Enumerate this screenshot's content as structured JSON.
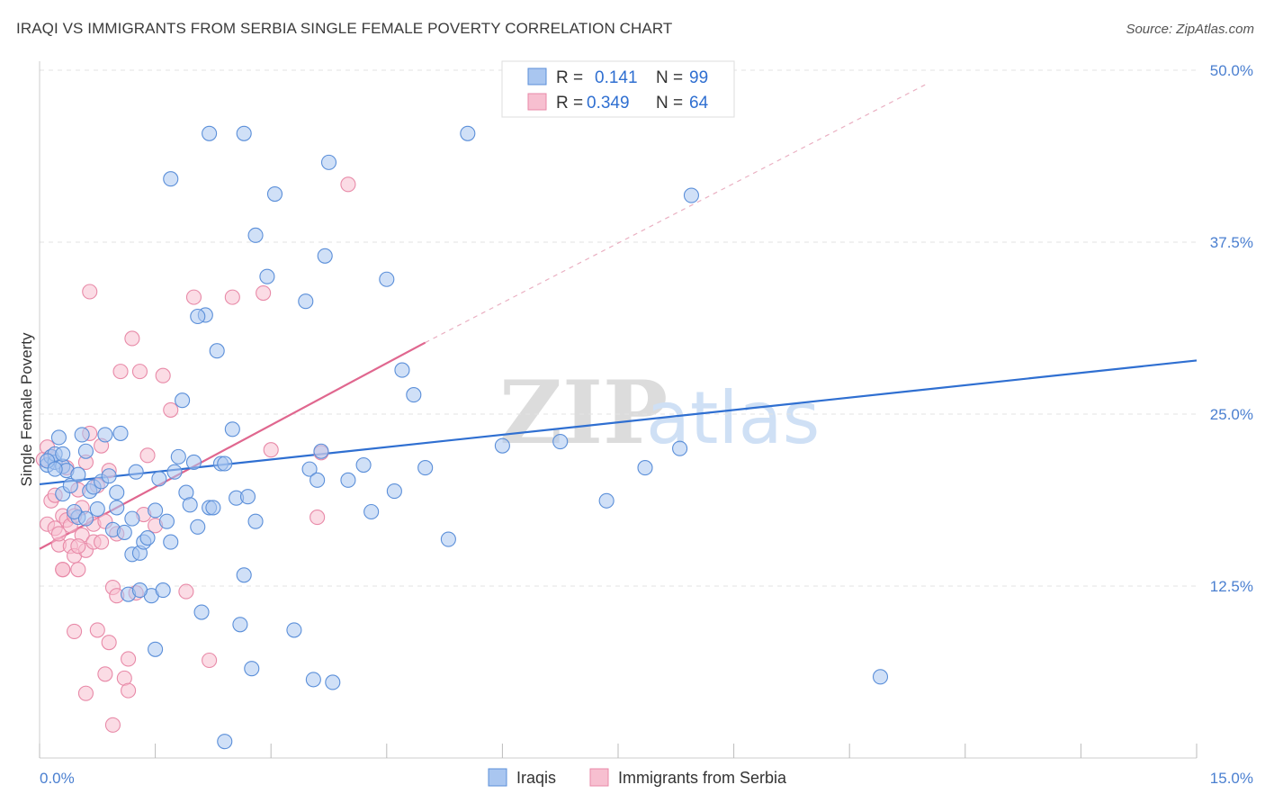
{
  "header": {
    "title": "IRAQI VS IMMIGRANTS FROM SERBIA SINGLE FEMALE POVERTY CORRELATION CHART",
    "source": "Source: ZipAtlas.com"
  },
  "watermark": {
    "zip": "ZIP",
    "atlas": "atlas"
  },
  "legend": {
    "rows": [
      {
        "r_label": "R =",
        "r_value": "0.141",
        "n_label": "N =",
        "n_value": "99"
      },
      {
        "r_label": "R =",
        "r_value": "0.349",
        "n_label": "N =",
        "n_value": "64"
      }
    ]
  },
  "bottom_legend": {
    "iraqis": "Iraqis",
    "serbia": "Immigrants from Serbia"
  },
  "colors": {
    "iraqi_fill": "#a9c6f0",
    "iraqi_stroke": "#5b8fd9",
    "iraqi_line": "#2f6fd1",
    "serbia_fill": "#f7bfd0",
    "serbia_stroke": "#e88aa8",
    "serbia_line": "#e0678f",
    "grid": "#e3e3e3"
  },
  "chart_data": {
    "type": "scatter",
    "title": "IRAQI VS IMMIGRANTS FROM SERBIA SINGLE FEMALE POVERTY CORRELATION CHART",
    "xlabel": "",
    "ylabel": "Single Female Poverty",
    "xlim": [
      0,
      15
    ],
    "ylim": [
      0,
      50
    ],
    "x_tick_labels": [
      "0.0%",
      "15.0%"
    ],
    "y_ticks": [
      12.5,
      25.0,
      37.5,
      50.0
    ],
    "y_tick_labels": [
      "12.5%",
      "25.0%",
      "37.5%",
      "50.0%"
    ],
    "series": [
      {
        "name": "Iraqis",
        "r": 0.141,
        "n": 99,
        "trend": {
          "x": [
            0,
            15
          ],
          "y": [
            19.9,
            28.9
          ]
        },
        "points": [
          [
            0.1,
            21.3
          ],
          [
            0.15,
            21.9
          ],
          [
            0.2,
            21.5
          ],
          [
            0.25,
            23.3
          ],
          [
            0.3,
            21.2
          ],
          [
            0.2,
            22.1
          ],
          [
            0.35,
            20.9
          ],
          [
            0.3,
            19.2
          ],
          [
            0.4,
            19.8
          ],
          [
            0.5,
            17.5
          ],
          [
            0.45,
            17.9
          ],
          [
            0.5,
            20.6
          ],
          [
            0.55,
            23.5
          ],
          [
            0.6,
            22.3
          ],
          [
            0.65,
            19.4
          ],
          [
            0.7,
            19.7
          ],
          [
            0.75,
            18.1
          ],
          [
            0.8,
            20.1
          ],
          [
            0.85,
            23.5
          ],
          [
            0.9,
            20.5
          ],
          [
            0.95,
            16.6
          ],
          [
            1.0,
            18.2
          ],
          [
            1.0,
            19.3
          ],
          [
            1.05,
            23.6
          ],
          [
            1.1,
            16.4
          ],
          [
            1.15,
            11.9
          ],
          [
            1.2,
            14.8
          ],
          [
            1.25,
            20.8
          ],
          [
            1.3,
            14.9
          ],
          [
            1.35,
            15.7
          ],
          [
            1.4,
            16.0
          ],
          [
            1.45,
            11.8
          ],
          [
            1.5,
            7.9
          ],
          [
            1.55,
            20.3
          ],
          [
            1.6,
            12.2
          ],
          [
            1.65,
            17.2
          ],
          [
            1.7,
            15.7
          ],
          [
            1.75,
            20.8
          ],
          [
            1.8,
            21.9
          ],
          [
            1.85,
            26.0
          ],
          [
            1.9,
            19.3
          ],
          [
            1.95,
            18.4
          ],
          [
            2.0,
            21.5
          ],
          [
            2.05,
            16.8
          ],
          [
            2.1,
            10.6
          ],
          [
            2.15,
            32.2
          ],
          [
            2.2,
            18.2
          ],
          [
            2.25,
            18.2
          ],
          [
            2.3,
            29.6
          ],
          [
            2.35,
            21.4
          ],
          [
            2.4,
            21.4
          ],
          [
            2.5,
            23.9
          ],
          [
            2.55,
            18.9
          ],
          [
            2.6,
            9.7
          ],
          [
            2.65,
            13.3
          ],
          [
            2.7,
            19.0
          ],
          [
            2.75,
            6.5
          ],
          [
            2.8,
            17.2
          ],
          [
            2.95,
            35.0
          ],
          [
            3.05,
            41.0
          ],
          [
            3.3,
            9.3
          ],
          [
            3.45,
            33.2
          ],
          [
            3.5,
            21.0
          ],
          [
            3.55,
            5.7
          ],
          [
            3.6,
            20.2
          ],
          [
            3.65,
            22.3
          ],
          [
            3.7,
            36.5
          ],
          [
            3.8,
            5.5
          ],
          [
            4.0,
            20.2
          ],
          [
            4.2,
            21.3
          ],
          [
            4.3,
            17.9
          ],
          [
            4.5,
            34.8
          ],
          [
            4.6,
            19.4
          ],
          [
            4.7,
            28.2
          ],
          [
            4.85,
            26.4
          ],
          [
            5.0,
            21.1
          ],
          [
            5.3,
            15.9
          ],
          [
            5.55,
            45.4
          ],
          [
            6.0,
            22.7
          ],
          [
            6.75,
            23.0
          ],
          [
            7.35,
            18.7
          ],
          [
            7.85,
            21.1
          ],
          [
            8.3,
            22.5
          ],
          [
            8.45,
            40.9
          ],
          [
            10.9,
            5.9
          ],
          [
            0.1,
            21.6
          ],
          [
            0.2,
            21.0
          ],
          [
            0.3,
            22.1
          ],
          [
            1.2,
            17.4
          ],
          [
            1.5,
            18.0
          ],
          [
            2.2,
            45.4
          ],
          [
            2.65,
            45.4
          ],
          [
            1.7,
            42.1
          ],
          [
            3.75,
            43.3
          ],
          [
            2.8,
            38.0
          ],
          [
            2.05,
            32.1
          ],
          [
            0.6,
            17.4
          ],
          [
            1.3,
            12.2
          ],
          [
            2.4,
            1.2
          ]
        ]
      },
      {
        "name": "Immigrants from Serbia",
        "r": 0.349,
        "n": 64,
        "trend": {
          "x": [
            0,
            5.0
          ],
          "y": [
            15.2,
            30.2
          ]
        },
        "trend_extension": {
          "x": [
            5.0,
            11.5
          ],
          "y": [
            30.2,
            49.0
          ]
        },
        "points": [
          [
            0.05,
            21.7
          ],
          [
            0.1,
            22.6
          ],
          [
            0.1,
            17.0
          ],
          [
            0.15,
            18.7
          ],
          [
            0.2,
            19.1
          ],
          [
            0.2,
            16.7
          ],
          [
            0.25,
            15.5
          ],
          [
            0.3,
            17.6
          ],
          [
            0.3,
            13.7
          ],
          [
            0.35,
            17.3
          ],
          [
            0.4,
            16.9
          ],
          [
            0.4,
            15.4
          ],
          [
            0.45,
            14.7
          ],
          [
            0.5,
            19.5
          ],
          [
            0.5,
            13.7
          ],
          [
            0.55,
            16.2
          ],
          [
            0.6,
            21.5
          ],
          [
            0.6,
            15.1
          ],
          [
            0.65,
            23.6
          ],
          [
            0.7,
            17.0
          ],
          [
            0.7,
            15.7
          ],
          [
            0.75,
            19.8
          ],
          [
            0.75,
            9.3
          ],
          [
            0.8,
            22.7
          ],
          [
            0.8,
            15.7
          ],
          [
            0.85,
            6.1
          ],
          [
            0.9,
            8.4
          ],
          [
            0.9,
            20.9
          ],
          [
            0.95,
            12.4
          ],
          [
            0.95,
            2.4
          ],
          [
            1.0,
            11.8
          ],
          [
            1.05,
            28.1
          ],
          [
            1.1,
            5.8
          ],
          [
            1.15,
            7.2
          ],
          [
            1.2,
            30.5
          ],
          [
            1.25,
            12.0
          ],
          [
            1.3,
            28.1
          ],
          [
            1.35,
            17.7
          ],
          [
            1.4,
            22.0
          ],
          [
            1.5,
            16.9
          ],
          [
            1.6,
            27.8
          ],
          [
            1.7,
            25.3
          ],
          [
            1.9,
            12.1
          ],
          [
            2.0,
            33.5
          ],
          [
            2.2,
            7.1
          ],
          [
            2.5,
            33.5
          ],
          [
            2.9,
            33.8
          ],
          [
            3.0,
            22.4
          ],
          [
            3.6,
            17.5
          ],
          [
            3.65,
            22.2
          ],
          [
            4.0,
            41.7
          ],
          [
            0.65,
            33.9
          ],
          [
            1.0,
            16.3
          ],
          [
            0.5,
            15.4
          ],
          [
            0.45,
            9.2
          ],
          [
            0.6,
            4.7
          ],
          [
            0.3,
            13.7
          ],
          [
            1.15,
            4.9
          ],
          [
            0.25,
            16.3
          ],
          [
            0.85,
            17.2
          ],
          [
            0.35,
            21.1
          ],
          [
            0.55,
            18.2
          ],
          [
            0.45,
            17.6
          ],
          [
            0.15,
            21.9
          ]
        ]
      }
    ]
  }
}
